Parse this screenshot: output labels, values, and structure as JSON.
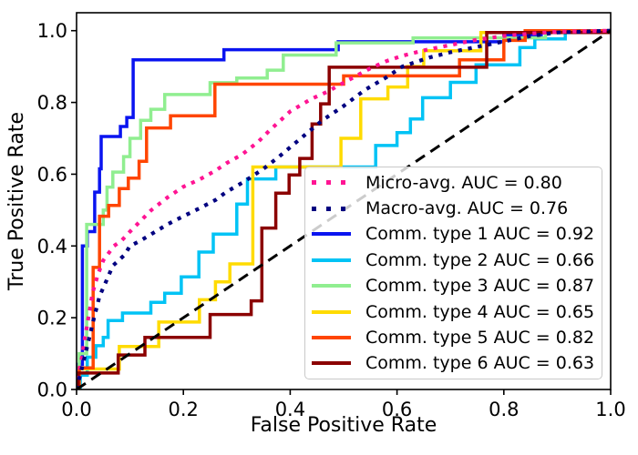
{
  "figure": {
    "xlabel": "False Positive Rate",
    "ylabel": "True Positive Rate"
  },
  "chart_data": {
    "type": "line",
    "subtype": "roc-curves",
    "title": "",
    "xlabel": "False Positive Rate",
    "ylabel": "True Positive Rate",
    "xlim": [
      0.0,
      1.0
    ],
    "ylim": [
      0.0,
      1.05
    ],
    "grid": false,
    "legend_position": "inside lower right",
    "xticks": {
      "values": [
        0.0,
        0.2,
        0.4,
        0.6,
        0.8,
        1.0
      ],
      "labels": [
        "0.0",
        "0.2",
        "0.4",
        "0.6",
        "0.8",
        "1.0"
      ]
    },
    "yticks": {
      "values": [
        0.0,
        0.2,
        0.4,
        0.6,
        0.8,
        1.0
      ],
      "labels": [
        "0.0",
        "0.2",
        "0.4",
        "0.6",
        "0.8",
        "1.0"
      ]
    },
    "reference_line": {
      "id": "chance-diagonal",
      "color": "#000000",
      "linestyle": "dashed",
      "points": [
        [
          0,
          0
        ],
        [
          1,
          1
        ]
      ]
    },
    "series": [
      {
        "id": "micro-avg",
        "label": "Micro-avg. AUC = 0.80",
        "auc": 0.8,
        "color": "#ff1493",
        "linestyle": "dotted",
        "points": [
          [
            0,
            0
          ],
          [
            0.005,
            0.05
          ],
          [
            0.01,
            0.09
          ],
          [
            0.015,
            0.14
          ],
          [
            0.02,
            0.18
          ],
          [
            0.03,
            0.27
          ],
          [
            0.04,
            0.32
          ],
          [
            0.05,
            0.36
          ],
          [
            0.07,
            0.4
          ],
          [
            0.085,
            0.416
          ],
          [
            0.1,
            0.44
          ],
          [
            0.12,
            0.47
          ],
          [
            0.14,
            0.5
          ],
          [
            0.17,
            0.535
          ],
          [
            0.2,
            0.565
          ],
          [
            0.23,
            0.585
          ],
          [
            0.26,
            0.61
          ],
          [
            0.28,
            0.63
          ],
          [
            0.31,
            0.655
          ],
          [
            0.34,
            0.69
          ],
          [
            0.36,
            0.72
          ],
          [
            0.4,
            0.775
          ],
          [
            0.44,
            0.81
          ],
          [
            0.47,
            0.83
          ],
          [
            0.5,
            0.855
          ],
          [
            0.55,
            0.895
          ],
          [
            0.58,
            0.915
          ],
          [
            0.61,
            0.93
          ],
          [
            0.65,
            0.945
          ],
          [
            0.7,
            0.96
          ],
          [
            0.75,
            0.975
          ],
          [
            0.8,
            0.985
          ],
          [
            0.85,
            0.992
          ],
          [
            0.9,
            0.997
          ],
          [
            1,
            1
          ]
        ]
      },
      {
        "id": "macro-avg",
        "label": "Macro-avg. AUC = 0.76",
        "auc": 0.76,
        "color": "#000080",
        "linestyle": "dotted",
        "points": [
          [
            0,
            0
          ],
          [
            0.01,
            0.06
          ],
          [
            0.02,
            0.12
          ],
          [
            0.031,
            0.19
          ],
          [
            0.043,
            0.26
          ],
          [
            0.055,
            0.3
          ],
          [
            0.068,
            0.345
          ],
          [
            0.09,
            0.375
          ],
          [
            0.1,
            0.4
          ],
          [
            0.12,
            0.415
          ],
          [
            0.14,
            0.433
          ],
          [
            0.17,
            0.46
          ],
          [
            0.2,
            0.483
          ],
          [
            0.23,
            0.505
          ],
          [
            0.26,
            0.528
          ],
          [
            0.28,
            0.55
          ],
          [
            0.31,
            0.576
          ],
          [
            0.35,
            0.615
          ],
          [
            0.38,
            0.65
          ],
          [
            0.42,
            0.7
          ],
          [
            0.46,
            0.75
          ],
          [
            0.5,
            0.79
          ],
          [
            0.54,
            0.835
          ],
          [
            0.58,
            0.87
          ],
          [
            0.61,
            0.9
          ],
          [
            0.66,
            0.925
          ],
          [
            0.7,
            0.94
          ],
          [
            0.75,
            0.955
          ],
          [
            0.8,
            0.97
          ],
          [
            0.85,
            0.985
          ],
          [
            0.9,
            0.995
          ],
          [
            1,
            1
          ]
        ]
      },
      {
        "id": "comm-type-1",
        "label": "Comm. type 1 AUC = 0.92",
        "auc": 0.92,
        "color": "#0a14f0",
        "linestyle": "solid",
        "points": [
          [
            0,
            0
          ],
          [
            0.003,
            0
          ],
          [
            0.003,
            0.07
          ],
          [
            0.011,
            0.07
          ],
          [
            0.011,
            0.4
          ],
          [
            0.02,
            0.4
          ],
          [
            0.02,
            0.44
          ],
          [
            0.034,
            0.44
          ],
          [
            0.034,
            0.55
          ],
          [
            0.043,
            0.55
          ],
          [
            0.043,
            0.615
          ],
          [
            0.046,
            0.615
          ],
          [
            0.046,
            0.705
          ],
          [
            0.082,
            0.705
          ],
          [
            0.082,
            0.733
          ],
          [
            0.094,
            0.733
          ],
          [
            0.094,
            0.758
          ],
          [
            0.106,
            0.758
          ],
          [
            0.106,
            0.919
          ],
          [
            0.276,
            0.919
          ],
          [
            0.276,
            0.947
          ],
          [
            0.49,
            0.947
          ],
          [
            0.49,
            0.969
          ],
          [
            0.8,
            0.969
          ],
          [
            0.8,
            0.988
          ],
          [
            0.87,
            0.988
          ],
          [
            0.87,
            1
          ],
          [
            1,
            1
          ]
        ]
      },
      {
        "id": "comm-type-2",
        "label": "Comm. type 2 AUC = 0.66",
        "auc": 0.66,
        "color": "#00c3f5",
        "linestyle": "solid",
        "points": [
          [
            0,
            0
          ],
          [
            0.007,
            0
          ],
          [
            0.007,
            0.04
          ],
          [
            0.02,
            0.04
          ],
          [
            0.02,
            0.09
          ],
          [
            0.036,
            0.09
          ],
          [
            0.036,
            0.122
          ],
          [
            0.05,
            0.122
          ],
          [
            0.05,
            0.145
          ],
          [
            0.059,
            0.145
          ],
          [
            0.059,
            0.192
          ],
          [
            0.086,
            0.192
          ],
          [
            0.086,
            0.213
          ],
          [
            0.139,
            0.213
          ],
          [
            0.139,
            0.243
          ],
          [
            0.165,
            0.243
          ],
          [
            0.165,
            0.268
          ],
          [
            0.196,
            0.268
          ],
          [
            0.196,
            0.314
          ],
          [
            0.229,
            0.314
          ],
          [
            0.229,
            0.383
          ],
          [
            0.256,
            0.383
          ],
          [
            0.256,
            0.433
          ],
          [
            0.3,
            0.433
          ],
          [
            0.3,
            0.517
          ],
          [
            0.32,
            0.517
          ],
          [
            0.32,
            0.587
          ],
          [
            0.373,
            0.587
          ],
          [
            0.373,
            0.62
          ],
          [
            0.56,
            0.62
          ],
          [
            0.56,
            0.68
          ],
          [
            0.6,
            0.68
          ],
          [
            0.6,
            0.716
          ],
          [
            0.625,
            0.716
          ],
          [
            0.625,
            0.754
          ],
          [
            0.648,
            0.754
          ],
          [
            0.648,
            0.813
          ],
          [
            0.7,
            0.813
          ],
          [
            0.7,
            0.856
          ],
          [
            0.748,
            0.856
          ],
          [
            0.748,
            0.905
          ],
          [
            0.83,
            0.905
          ],
          [
            0.83,
            0.953
          ],
          [
            0.858,
            0.953
          ],
          [
            0.858,
            0.977
          ],
          [
            0.915,
            0.977
          ],
          [
            0.915,
            1
          ],
          [
            1,
            1
          ]
        ]
      },
      {
        "id": "comm-type-3",
        "label": "Comm. type 3 AUC = 0.87",
        "auc": 0.87,
        "color": "#90ee90",
        "linestyle": "solid",
        "points": [
          [
            0,
            0
          ],
          [
            0.005,
            0
          ],
          [
            0.005,
            0.1
          ],
          [
            0.019,
            0.1
          ],
          [
            0.019,
            0.46
          ],
          [
            0.05,
            0.46
          ],
          [
            0.05,
            0.5
          ],
          [
            0.057,
            0.5
          ],
          [
            0.057,
            0.564
          ],
          [
            0.068,
            0.564
          ],
          [
            0.068,
            0.606
          ],
          [
            0.088,
            0.606
          ],
          [
            0.088,
            0.649
          ],
          [
            0.1,
            0.649
          ],
          [
            0.1,
            0.7
          ],
          [
            0.12,
            0.7
          ],
          [
            0.12,
            0.75
          ],
          [
            0.139,
            0.75
          ],
          [
            0.139,
            0.781
          ],
          [
            0.165,
            0.781
          ],
          [
            0.165,
            0.822
          ],
          [
            0.25,
            0.822
          ],
          [
            0.25,
            0.855
          ],
          [
            0.3,
            0.855
          ],
          [
            0.3,
            0.868
          ],
          [
            0.357,
            0.868
          ],
          [
            0.357,
            0.89
          ],
          [
            0.387,
            0.89
          ],
          [
            0.387,
            0.932
          ],
          [
            0.486,
            0.932
          ],
          [
            0.486,
            0.966
          ],
          [
            0.63,
            0.966
          ],
          [
            0.63,
            0.98
          ],
          [
            0.878,
            0.98
          ],
          [
            0.878,
            1
          ],
          [
            1,
            1
          ]
        ]
      },
      {
        "id": "comm-type-4",
        "label": "Comm. type 4 AUC = 0.65",
        "auc": 0.65,
        "color": "#ffdb00",
        "linestyle": "solid",
        "points": [
          [
            0,
            0
          ],
          [
            0.005,
            0
          ],
          [
            0.005,
            0.057
          ],
          [
            0.08,
            0.057
          ],
          [
            0.08,
            0.12
          ],
          [
            0.154,
            0.12
          ],
          [
            0.154,
            0.188
          ],
          [
            0.23,
            0.188
          ],
          [
            0.23,
            0.25
          ],
          [
            0.26,
            0.25
          ],
          [
            0.26,
            0.3
          ],
          [
            0.287,
            0.3
          ],
          [
            0.287,
            0.35
          ],
          [
            0.33,
            0.35
          ],
          [
            0.33,
            0.62
          ],
          [
            0.495,
            0.62
          ],
          [
            0.495,
            0.7
          ],
          [
            0.532,
            0.7
          ],
          [
            0.532,
            0.81
          ],
          [
            0.583,
            0.81
          ],
          [
            0.583,
            0.843
          ],
          [
            0.62,
            0.843
          ],
          [
            0.62,
            0.9
          ],
          [
            0.65,
            0.9
          ],
          [
            0.65,
            0.944
          ],
          [
            0.757,
            0.944
          ],
          [
            0.757,
            0.995
          ],
          [
            0.96,
            0.995
          ],
          [
            0.96,
            1
          ],
          [
            1,
            1
          ]
        ]
      },
      {
        "id": "comm-type-5",
        "label": "Comm. type 5 AUC = 0.82",
        "auc": 0.82,
        "color": "#ff4500",
        "linestyle": "solid",
        "points": [
          [
            0,
            0
          ],
          [
            0.005,
            0
          ],
          [
            0.005,
            0.06
          ],
          [
            0.031,
            0.06
          ],
          [
            0.031,
            0.34
          ],
          [
            0.043,
            0.34
          ],
          [
            0.043,
            0.483
          ],
          [
            0.06,
            0.483
          ],
          [
            0.06,
            0.513
          ],
          [
            0.08,
            0.513
          ],
          [
            0.08,
            0.56
          ],
          [
            0.097,
            0.56
          ],
          [
            0.097,
            0.589
          ],
          [
            0.117,
            0.589
          ],
          [
            0.117,
            0.636
          ],
          [
            0.131,
            0.636
          ],
          [
            0.131,
            0.729
          ],
          [
            0.176,
            0.729
          ],
          [
            0.176,
            0.763
          ],
          [
            0.259,
            0.763
          ],
          [
            0.259,
            0.851
          ],
          [
            0.5,
            0.851
          ],
          [
            0.5,
            0.874
          ],
          [
            0.717,
            0.874
          ],
          [
            0.717,
            0.919
          ],
          [
            0.8,
            0.919
          ],
          [
            0.8,
            0.973
          ],
          [
            0.84,
            0.973
          ],
          [
            0.84,
            1
          ],
          [
            1,
            1
          ]
        ]
      },
      {
        "id": "comm-type-6",
        "label": "Comm. type 6 AUC = 0.63",
        "auc": 0.63,
        "color": "#8b0000",
        "linestyle": "solid",
        "points": [
          [
            0,
            0
          ],
          [
            0.003,
            0
          ],
          [
            0.003,
            0.046
          ],
          [
            0.078,
            0.046
          ],
          [
            0.078,
            0.096
          ],
          [
            0.128,
            0.096
          ],
          [
            0.128,
            0.145
          ],
          [
            0.25,
            0.145
          ],
          [
            0.25,
            0.209
          ],
          [
            0.327,
            0.209
          ],
          [
            0.327,
            0.247
          ],
          [
            0.347,
            0.247
          ],
          [
            0.347,
            0.45
          ],
          [
            0.373,
            0.45
          ],
          [
            0.373,
            0.547
          ],
          [
            0.398,
            0.547
          ],
          [
            0.398,
            0.598
          ],
          [
            0.418,
            0.598
          ],
          [
            0.418,
            0.644
          ],
          [
            0.441,
            0.644
          ],
          [
            0.441,
            0.74
          ],
          [
            0.457,
            0.74
          ],
          [
            0.457,
            0.796
          ],
          [
            0.473,
            0.796
          ],
          [
            0.473,
            0.898
          ],
          [
            0.768,
            0.898
          ],
          [
            0.768,
            0.995
          ],
          [
            1,
            0.995
          ],
          [
            1,
            1
          ]
        ]
      }
    ]
  }
}
